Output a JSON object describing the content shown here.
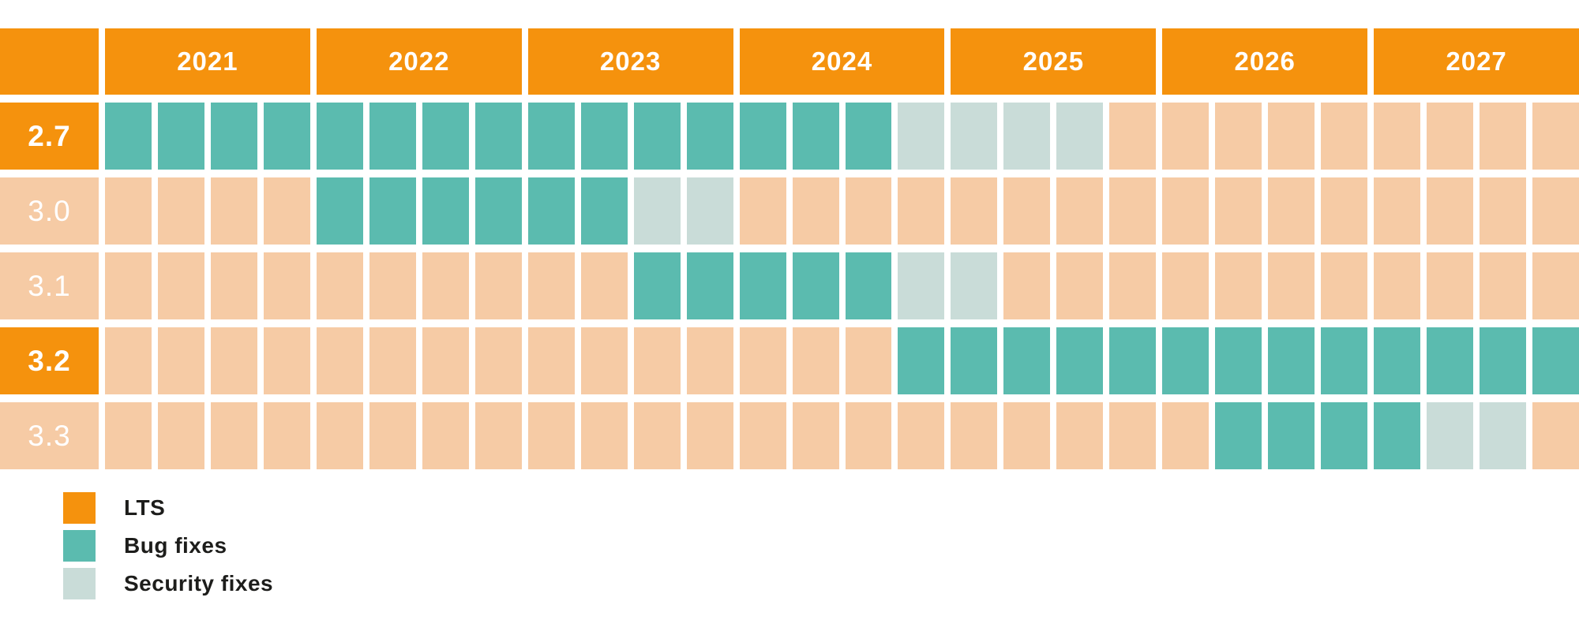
{
  "colors": {
    "lts_orange": "#F5920D",
    "bug_fixes_teal": "#5BBBAF",
    "security_fixes_light_teal": "#C9DCD8",
    "no_support_peach": "#F6CBA5",
    "legend_text": "#1D1D1B",
    "cell_label_text": "#FFFFFF",
    "background": "#FFFFFF"
  },
  "legend": {
    "items": [
      {
        "id": "lts",
        "label": "LTS"
      },
      {
        "id": "bug-fixes",
        "label": "Bug fixes"
      },
      {
        "id": "security-fixes",
        "label": "Security fixes"
      }
    ]
  },
  "chart_data": {
    "type": "heatmap",
    "description": "Version support timeline grid; one column per quarter, one row per version",
    "x_axis": {
      "years": [
        "2021",
        "2022",
        "2023",
        "2024",
        "2025",
        "2026",
        "2027"
      ],
      "quarters_per_year": 4,
      "total_columns": 28
    },
    "cell_states": {
      "B": "Bug fixes",
      "S": "Security fixes",
      "N": "No support"
    },
    "rows": [
      {
        "label": "2.7",
        "lts": true,
        "bug_fixes_range": "2021Q1-2024Q3",
        "security_fixes_range": "2024Q4-2025Q3",
        "cells": [
          "B",
          "B",
          "B",
          "B",
          "B",
          "B",
          "B",
          "B",
          "B",
          "B",
          "B",
          "B",
          "B",
          "B",
          "B",
          "S",
          "S",
          "S",
          "S",
          "N",
          "N",
          "N",
          "N",
          "N",
          "N",
          "N",
          "N",
          "N"
        ]
      },
      {
        "label": "3.0",
        "lts": false,
        "bug_fixes_range": "2022Q1-2023Q2",
        "security_fixes_range": "2023Q3-2023Q4",
        "cells": [
          "N",
          "N",
          "N",
          "N",
          "B",
          "B",
          "B",
          "B",
          "B",
          "B",
          "S",
          "S",
          "N",
          "N",
          "N",
          "N",
          "N",
          "N",
          "N",
          "N",
          "N",
          "N",
          "N",
          "N",
          "N",
          "N",
          "N",
          "N"
        ]
      },
      {
        "label": "3.1",
        "lts": false,
        "bug_fixes_range": "2023Q3-2024Q3",
        "security_fixes_range": "2024Q4-2025Q1",
        "cells": [
          "N",
          "N",
          "N",
          "N",
          "N",
          "N",
          "N",
          "N",
          "N",
          "N",
          "B",
          "B",
          "B",
          "B",
          "B",
          "S",
          "S",
          "N",
          "N",
          "N",
          "N",
          "N",
          "N",
          "N",
          "N",
          "N",
          "N",
          "N"
        ]
      },
      {
        "label": "3.2",
        "lts": true,
        "bug_fixes_range": "2024Q4-2027Q4",
        "security_fixes_range": "",
        "cells": [
          "N",
          "N",
          "N",
          "N",
          "N",
          "N",
          "N",
          "N",
          "N",
          "N",
          "N",
          "N",
          "N",
          "N",
          "N",
          "B",
          "B",
          "B",
          "B",
          "B",
          "B",
          "B",
          "B",
          "B",
          "B",
          "B",
          "B",
          "B"
        ]
      },
      {
        "label": "3.3",
        "lts": false,
        "bug_fixes_range": "2026Q2-2027Q1",
        "security_fixes_range": "2027Q2-2027Q3",
        "cells": [
          "N",
          "N",
          "N",
          "N",
          "N",
          "N",
          "N",
          "N",
          "N",
          "N",
          "N",
          "N",
          "N",
          "N",
          "N",
          "N",
          "N",
          "N",
          "N",
          "N",
          "N",
          "B",
          "B",
          "B",
          "B",
          "S",
          "S",
          "N"
        ]
      }
    ]
  }
}
